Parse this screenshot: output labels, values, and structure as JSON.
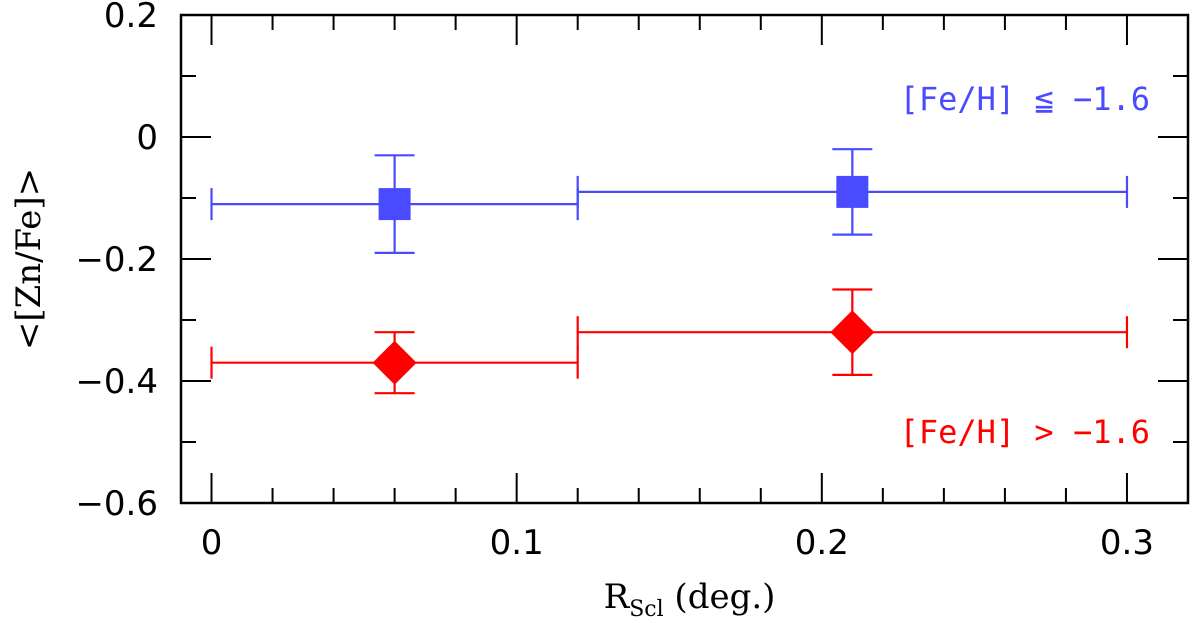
{
  "chart_data": {
    "type": "scatter",
    "title": "",
    "xlabel": {
      "main": "R",
      "sub": "Scl",
      "suffix": " (deg.)"
    },
    "ylabel": "<[Zn/Fe]>",
    "xlim": [
      -0.01,
      0.32
    ],
    "ylim": [
      -0.6,
      0.2
    ],
    "x_ticks_major": [
      0,
      0.1,
      0.2,
      0.3
    ],
    "x_tick_labels": [
      "0",
      "0.1",
      "0.2",
      "0.3"
    ],
    "y_ticks_major": [
      -0.6,
      -0.4,
      -0.2,
      0,
      0.2
    ],
    "y_tick_labels": [
      "−0.6",
      "−0.4",
      "−0.2",
      "0",
      "0.2"
    ],
    "grid": false,
    "series": [
      {
        "name": "[Fe/H] ≦ −1.6",
        "color": "#4a4aff",
        "marker": "square",
        "points": [
          {
            "x": 0.06,
            "y": -0.11,
            "x_lo": 0.0,
            "x_hi": 0.12,
            "y_lo": -0.19,
            "y_hi": -0.03
          },
          {
            "x": 0.21,
            "y": -0.09,
            "x_lo": 0.12,
            "x_hi": 0.3,
            "y_lo": -0.16,
            "y_hi": -0.02
          }
        ]
      },
      {
        "name": "[Fe/H] > −1.6",
        "color": "#ff0000",
        "marker": "diamond",
        "points": [
          {
            "x": 0.06,
            "y": -0.37,
            "x_lo": 0.0,
            "x_hi": 0.12,
            "y_lo": -0.42,
            "y_hi": -0.32
          },
          {
            "x": 0.21,
            "y": -0.32,
            "x_lo": 0.12,
            "x_hi": 0.3,
            "y_lo": -0.39,
            "y_hi": -0.25
          }
        ]
      }
    ]
  }
}
